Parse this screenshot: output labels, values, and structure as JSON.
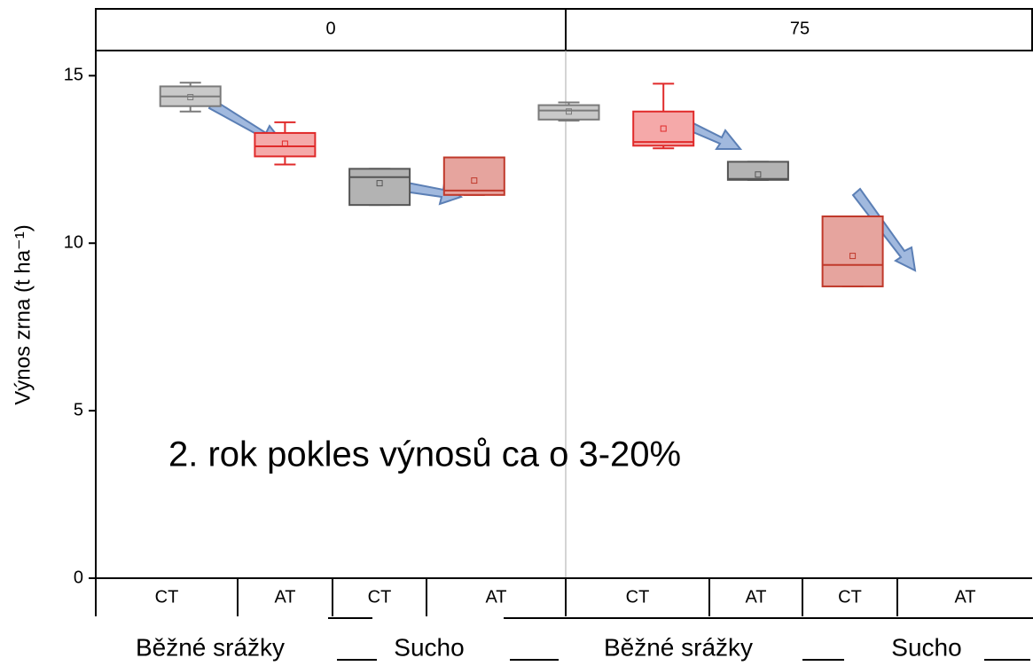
{
  "chart_data": {
    "type": "box",
    "ylabel": "Výnos zrna (t ha⁻¹)",
    "annotation": "2. rok pokles výnosů ca o 3-20%",
    "panels": [
      "0",
      "75"
    ],
    "categories": [
      "CT",
      "AT",
      "CT",
      "AT",
      "CT",
      "AT",
      "CT",
      "AT"
    ],
    "groups": [
      "Běžné srážky",
      "Sucho",
      "Běžné srážky",
      "Sucho"
    ],
    "ylim": [
      0,
      15.75
    ],
    "yticks": [
      0,
      5,
      10,
      15
    ],
    "boxes": [
      {
        "min": 13.93,
        "q1": 14.09,
        "median": 14.38,
        "q3": 14.68,
        "max": 14.79,
        "mean": 14.36,
        "color": "#7a7a7a",
        "fill": "#c9c9c9"
      },
      {
        "min": 12.35,
        "q1": 12.59,
        "median": 12.89,
        "q3": 13.29,
        "max": 13.61,
        "mean": 12.97,
        "color": "#e02a2a",
        "fill": "#f5a9a9"
      },
      {
        "min": 11.14,
        "q1": 11.14,
        "median": 11.97,
        "q3": 12.22,
        "max": 12.22,
        "mean": 11.79,
        "color": "#555555",
        "fill": "#b3b3b3"
      },
      {
        "min": 11.44,
        "q1": 11.44,
        "median": 11.57,
        "q3": 12.56,
        "max": 12.56,
        "mean": 11.87,
        "color": "#c0392b",
        "fill": "#e6a49e"
      },
      {
        "min": 13.66,
        "q1": 13.69,
        "median": 13.96,
        "q3": 14.12,
        "max": 14.2,
        "mean": 13.93,
        "color": "#7a7a7a",
        "fill": "#c9c9c9"
      },
      {
        "min": 12.83,
        "q1": 12.91,
        "median": 13.02,
        "q3": 13.93,
        "max": 14.76,
        "mean": 13.42,
        "color": "#e02a2a",
        "fill": "#f5a9a9"
      },
      {
        "min": 11.89,
        "q1": 11.89,
        "median": 11.92,
        "q3": 12.43,
        "max": 12.43,
        "mean": 12.05,
        "color": "#555555",
        "fill": "#b3b3b3"
      },
      {
        "min": 8.71,
        "q1": 8.71,
        "median": 9.35,
        "q3": 10.8,
        "max": 10.8,
        "mean": 9.62,
        "color": "#c0392b",
        "fill": "#e6a49e"
      }
    ]
  }
}
